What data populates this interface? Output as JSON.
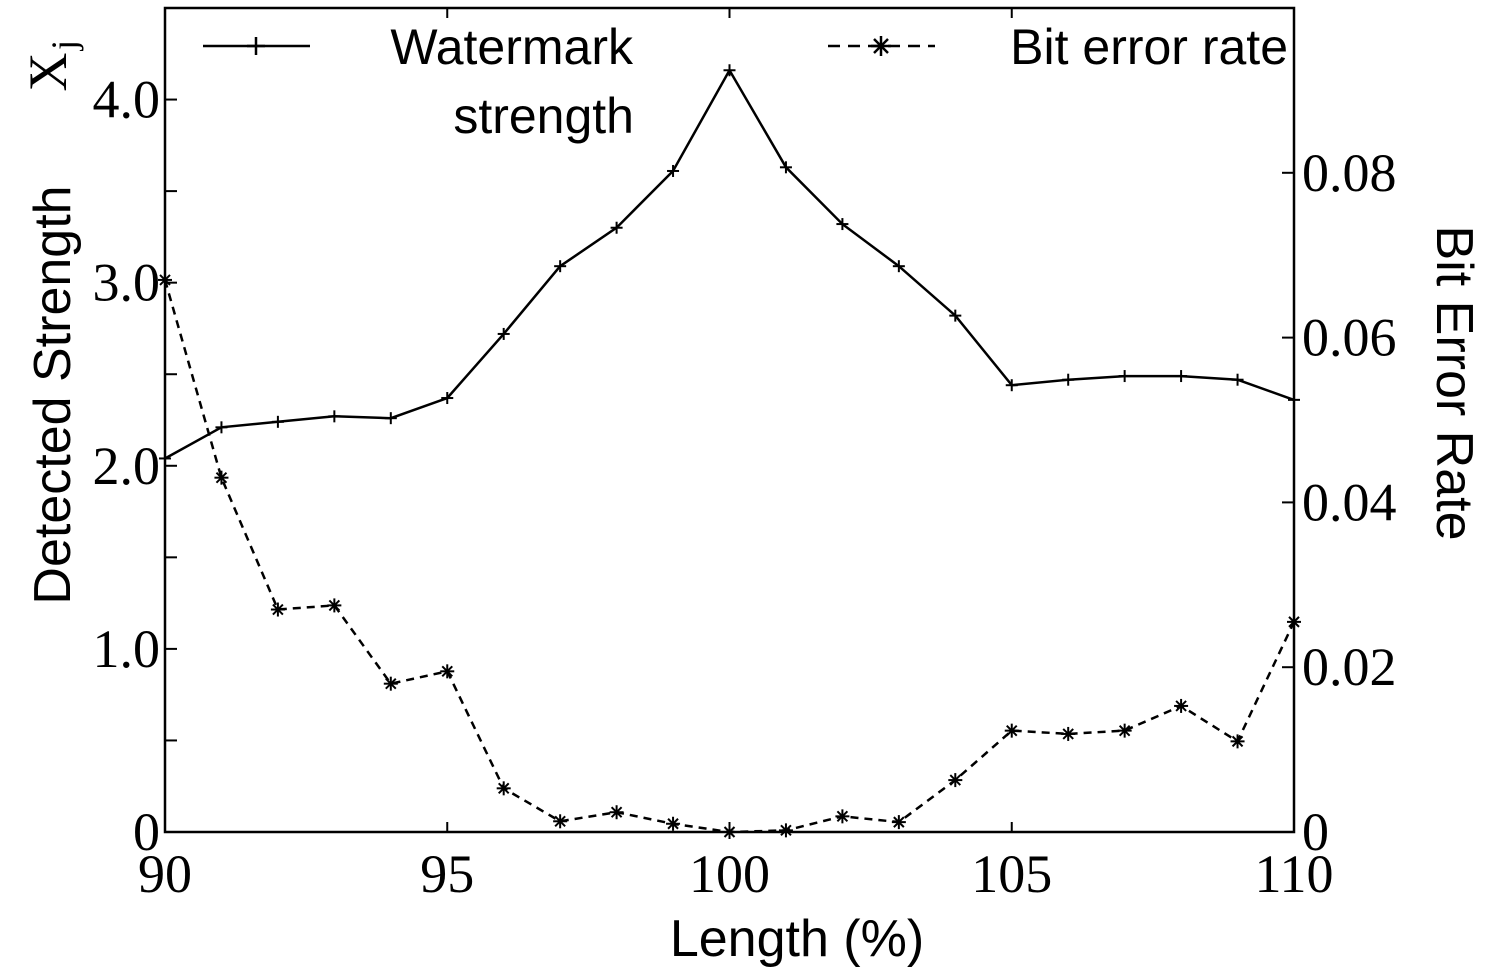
{
  "chart_data": {
    "type": "line",
    "title": "",
    "xlabel": "Length (%)",
    "ylabel_left": "Detected Strength",
    "ylabel_left_symbol": "X",
    "ylabel_left_symbol_sub": "j",
    "ylabel_right": "Bit Error Rate",
    "xlim": [
      90,
      110
    ],
    "ylim_left": [
      0,
      4.5
    ],
    "ylim_right": [
      0,
      0.1
    ],
    "x_ticks": [
      90,
      95,
      100,
      105,
      110
    ],
    "x_tick_labels": [
      "90",
      "95",
      "100",
      "105",
      "110"
    ],
    "y_left_ticks": [
      0,
      1.0,
      2.0,
      3.0,
      4.0
    ],
    "y_left_tick_labels": [
      "0",
      "1.0",
      "2.0",
      "3.0",
      "4.0"
    ],
    "y_right_ticks": [
      0,
      0.02,
      0.04,
      0.06,
      0.08
    ],
    "y_right_tick_labels": [
      "0",
      "0.02",
      "0.04",
      "0.06",
      "0.08"
    ],
    "grid": false,
    "legend_placement": "top",
    "series": [
      {
        "name": "Watermark strength",
        "legend_lines": [
          "Watermark",
          "strength"
        ],
        "axis": "left",
        "style": "solid",
        "marker": "+",
        "color": "#000000",
        "x": [
          90,
          91,
          92,
          93,
          94,
          95,
          96,
          97,
          98,
          99,
          100,
          101,
          102,
          103,
          104,
          105,
          106,
          107,
          108,
          109,
          110
        ],
        "values": [
          2.04,
          2.21,
          2.24,
          2.27,
          2.26,
          2.37,
          2.72,
          3.09,
          3.3,
          3.61,
          4.16,
          3.63,
          3.32,
          3.09,
          2.82,
          2.44,
          2.47,
          2.49,
          2.49,
          2.47,
          2.36
        ]
      },
      {
        "name": "Bit error rate",
        "legend_lines": [
          "Bit error rate"
        ],
        "axis": "right",
        "style": "dashed",
        "marker": "*",
        "color": "#000000",
        "x": [
          90,
          91,
          92,
          93,
          94,
          95,
          96,
          97,
          98,
          99,
          100,
          101,
          102,
          103,
          104,
          105,
          106,
          107,
          108,
          109,
          110
        ],
        "values": [
          0.067,
          0.043,
          0.027,
          0.0275,
          0.018,
          0.0195,
          0.0053,
          0.0013,
          0.0024,
          0.001,
          0.0,
          0.0002,
          0.0019,
          0.0012,
          0.0063,
          0.0123,
          0.0119,
          0.0123,
          0.0153,
          0.011,
          0.0255
        ]
      }
    ]
  }
}
